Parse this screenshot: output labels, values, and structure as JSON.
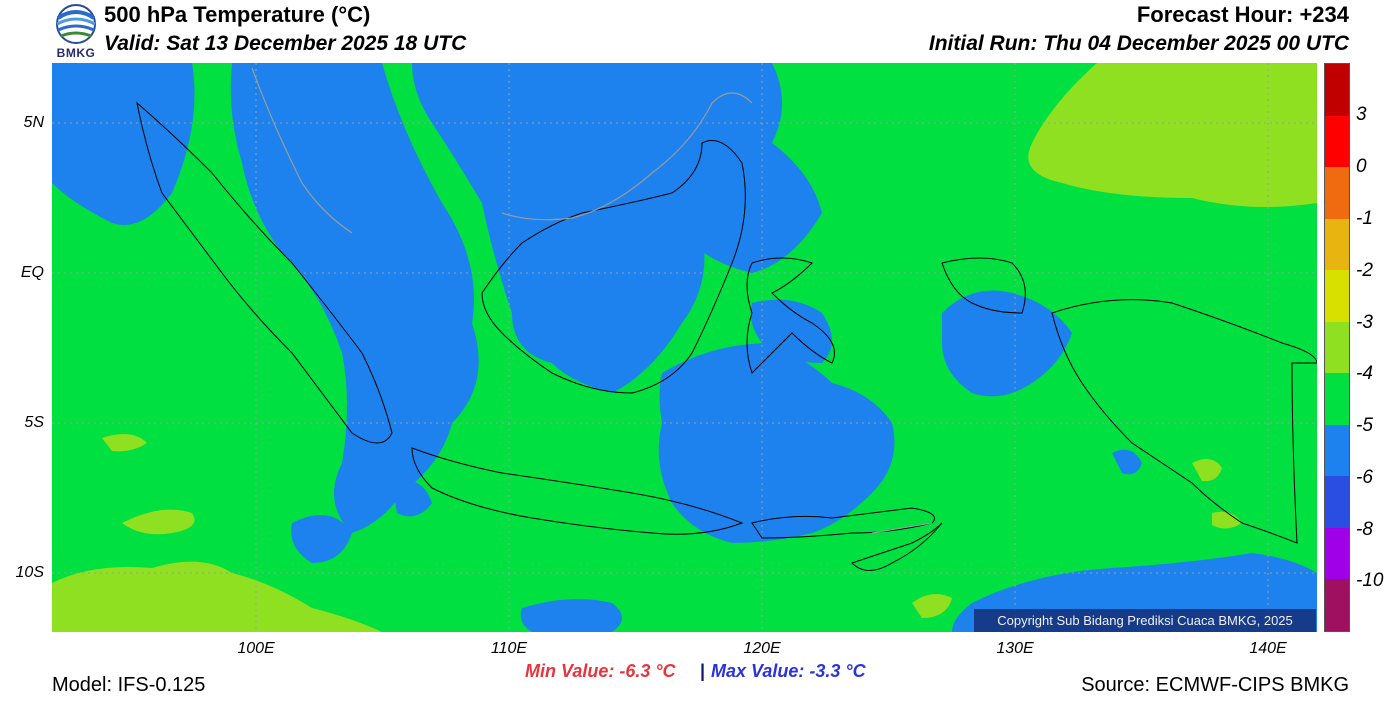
{
  "header": {
    "title": "500 hPa Temperature (°C)",
    "valid": "Valid: Sat 13 December 2025 18 UTC",
    "forecast_hour": "Forecast Hour: +234",
    "initial_run": "Initial Run: Thu 04 December 2025 00 UTC"
  },
  "logo": {
    "text": "BMKG",
    "icon": "bmkg-logo-icon"
  },
  "axes": {
    "lat_labels": [
      "5N",
      "EQ",
      "5S",
      "10S"
    ],
    "lon_labels": [
      "100E",
      "110E",
      "120E",
      "130E",
      "140E"
    ]
  },
  "colorbar": {
    "labels": [
      "3",
      "0",
      "-1",
      "-2",
      "-3",
      "-4",
      "-5",
      "-6",
      "-8",
      "-10"
    ],
    "colors": [
      "#c00000",
      "#ff0000",
      "#f06a10",
      "#e8b410",
      "#d8e000",
      "#8ee020",
      "#00e040",
      "#1e82ee",
      "#2a4ee0",
      "#a000e8",
      "#a01060"
    ]
  },
  "stats": {
    "min": "Min Value: -6.3 °C",
    "separator": "|",
    "max": "Max Value: -3.3 °C"
  },
  "footer": {
    "model": "Model: IFS-0.125",
    "source": "Source: ECMWF-CIPS BMKG",
    "copyright": "Copyright Sub Bidang Prediksi Cuaca BMKG, 2025"
  },
  "map_colors": {
    "background": "#00e040",
    "cold": "#1e82ee",
    "warm": "#8ee020"
  }
}
